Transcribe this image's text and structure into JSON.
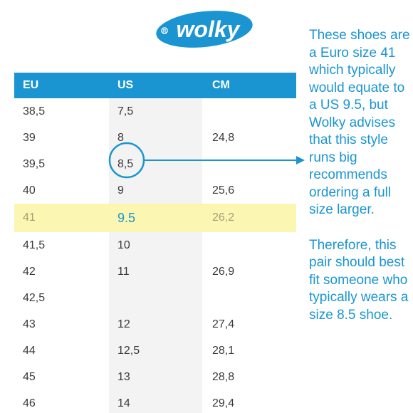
{
  "brand": {
    "name": "wolky",
    "color": "#1a95d2"
  },
  "table": {
    "headers": {
      "eu": "EU",
      "us": "US",
      "cm": "CM"
    },
    "rows": [
      {
        "eu": "38,5",
        "us": "7,5",
        "cm": ""
      },
      {
        "eu": "39",
        "us": "8",
        "cm": "24,8"
      },
      {
        "eu": "39,5",
        "us": "8,5",
        "cm": ""
      },
      {
        "eu": "40",
        "us": "9",
        "cm": "25,6"
      },
      {
        "eu": "41",
        "us": "9.5",
        "cm": "26,2"
      },
      {
        "eu": "41,5",
        "us": "10",
        "cm": ""
      },
      {
        "eu": "42",
        "us": "11",
        "cm": "26,9"
      },
      {
        "eu": "42,5",
        "us": "",
        "cm": ""
      },
      {
        "eu": "43",
        "us": "12",
        "cm": "27,4"
      },
      {
        "eu": "44",
        "us": "12,5",
        "cm": "28,1"
      },
      {
        "eu": "45",
        "us": "13",
        "cm": "28,8"
      },
      {
        "eu": "46",
        "us": "14",
        "cm": "29,4"
      }
    ],
    "highlighted_row": 4,
    "highlight_color": "#fbf7b3",
    "circled_row": 2
  },
  "note": {
    "paragraph1": "These shoes are a Euro size 41 which typically would equate to a US 9.5, but Wolky advises that this style runs big recommends ordering a full size larger.",
    "paragraph2": "Therefore, this pair should best fit someone who typically wears a size 8.5 shoe."
  }
}
